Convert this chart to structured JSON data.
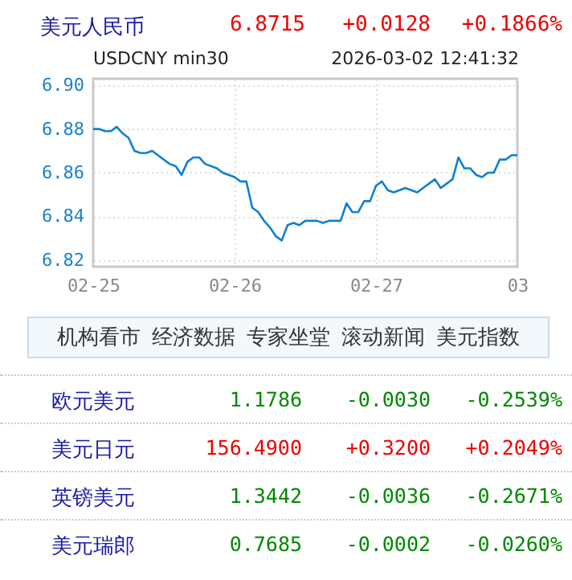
{
  "chart_data": [
    {
      "type": "other",
      "annotations": [
        "美元人民币",
        "6.8715",
        "+0.0128",
        "+0.1866%"
      ]
    },
    {
      "type": "area",
      "title": "USDCNY min30",
      "subtitle": "2026-03-02 12:41:32",
      "categories": [
        "02-25",
        null,
        null,
        null,
        null,
        null,
        null,
        null,
        null,
        null,
        null,
        null,
        null,
        null,
        null,
        null,
        null,
        null,
        null,
        null,
        null,
        null,
        null,
        null,
        "02-26",
        null,
        null,
        null,
        null,
        null,
        null,
        null,
        null,
        null,
        null,
        null,
        null,
        null,
        null,
        null,
        null,
        null,
        null,
        null,
        null,
        null,
        null,
        null,
        "02-27",
        null,
        null,
        null,
        null,
        null,
        null,
        null,
        null,
        null,
        null,
        null,
        null,
        null,
        null,
        null,
        null,
        null,
        null,
        null,
        null,
        null,
        null,
        null,
        "03"
      ],
      "series": [
        {
          "color": "#0f7fd4",
          "values": [
            6.88,
            6.88,
            6.879,
            6.879,
            6.881,
            6.878,
            6.876,
            6.87,
            6.869,
            6.869,
            6.87,
            6.868,
            6.866,
            6.864,
            6.863,
            6.859,
            6.865,
            6.867,
            6.867,
            6.864,
            6.863,
            6.862,
            6.86,
            6.859,
            6.858,
            6.856,
            6.856,
            6.844,
            6.842,
            6.838,
            6.835,
            6.831,
            6.829,
            6.836,
            6.837,
            6.836,
            6.838,
            6.838,
            6.838,
            6.837,
            6.838,
            6.838,
            6.838,
            6.846,
            6.842,
            6.842,
            6.847,
            6.847,
            6.854,
            6.856,
            6.852,
            6.851,
            6.852,
            6.853,
            6.852,
            6.851,
            6.853,
            6.855,
            6.857,
            6.853,
            6.855,
            6.857,
            6.867,
            6.862,
            6.862,
            6.859,
            6.858,
            6.86,
            6.86,
            6.866,
            6.866,
            6.868,
            6.868
          ]
        }
      ],
      "ylim": [
        6.817,
        6.903
      ],
      "yticks": [
        6.82,
        6.84,
        6.86,
        6.88,
        {
          "value": 6.9,
          "label": "6.90"
        }
      ],
      "grid": true
    },
    {
      "type": "other",
      "annotations": [
        "机构看市",
        "经济数据",
        "专家坐堂",
        "滚动新闻",
        "美元指数"
      ]
    },
    {
      "type": "other",
      "annotations": [
        "欧元美元",
        "1.1786",
        "-0.0030",
        "-0.2539%",
        "美元日元",
        "156.4900",
        "+0.3200",
        "+0.2049%",
        "英镑美元",
        "1.3442",
        "-0.0036",
        "-0.2671%",
        "美元瑞郎",
        "0.7685",
        "-0.0002",
        "-0.0260%"
      ]
    }
  ]
}
